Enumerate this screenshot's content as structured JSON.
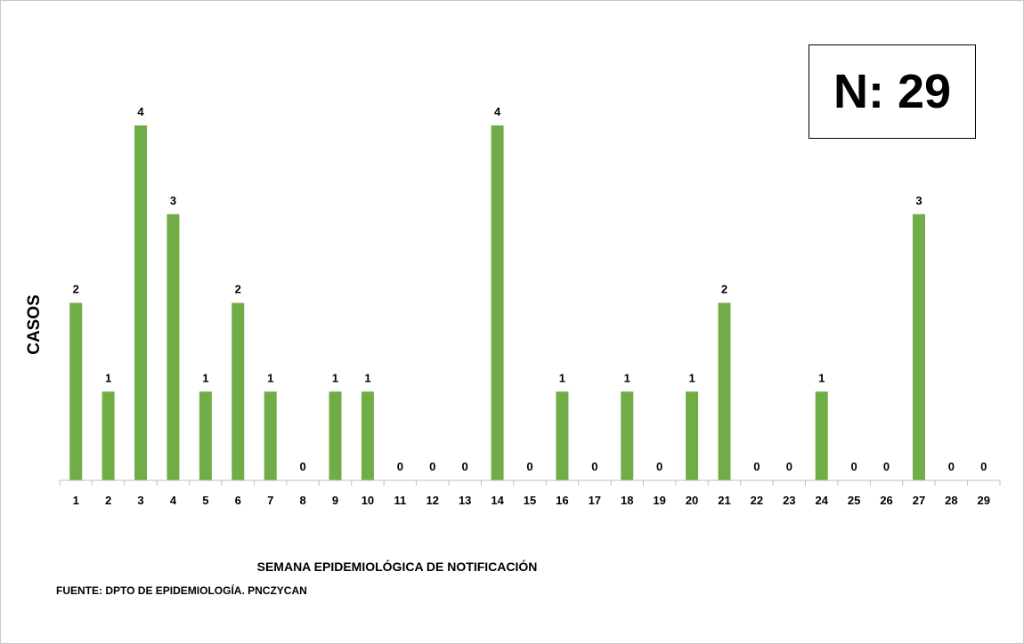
{
  "chart_data": {
    "type": "bar",
    "categories": [
      "1",
      "2",
      "3",
      "4",
      "5",
      "6",
      "7",
      "8",
      "9",
      "10",
      "11",
      "12",
      "13",
      "14",
      "15",
      "16",
      "17",
      "18",
      "19",
      "20",
      "21",
      "22",
      "23",
      "24",
      "25",
      "26",
      "27",
      "28",
      "29"
    ],
    "values": [
      2,
      1,
      4,
      3,
      1,
      2,
      1,
      0,
      1,
      1,
      0,
      0,
      0,
      4,
      0,
      1,
      0,
      1,
      0,
      1,
      2,
      0,
      0,
      1,
      0,
      0,
      3,
      0,
      0
    ],
    "ylabel": "CASOS",
    "xlabel": "SEMANA EPIDEMIOLÓGICA DE NOTIFICACIÓN",
    "ylim": [
      0,
      4
    ],
    "grid": false,
    "bar_color": "#70ad47",
    "data_labels": true
  },
  "annotation": {
    "total_label": "N: 29"
  },
  "source": "FUENTE: DPTO DE EPIDEMIOLOGÍA. PNCZYCAN"
}
